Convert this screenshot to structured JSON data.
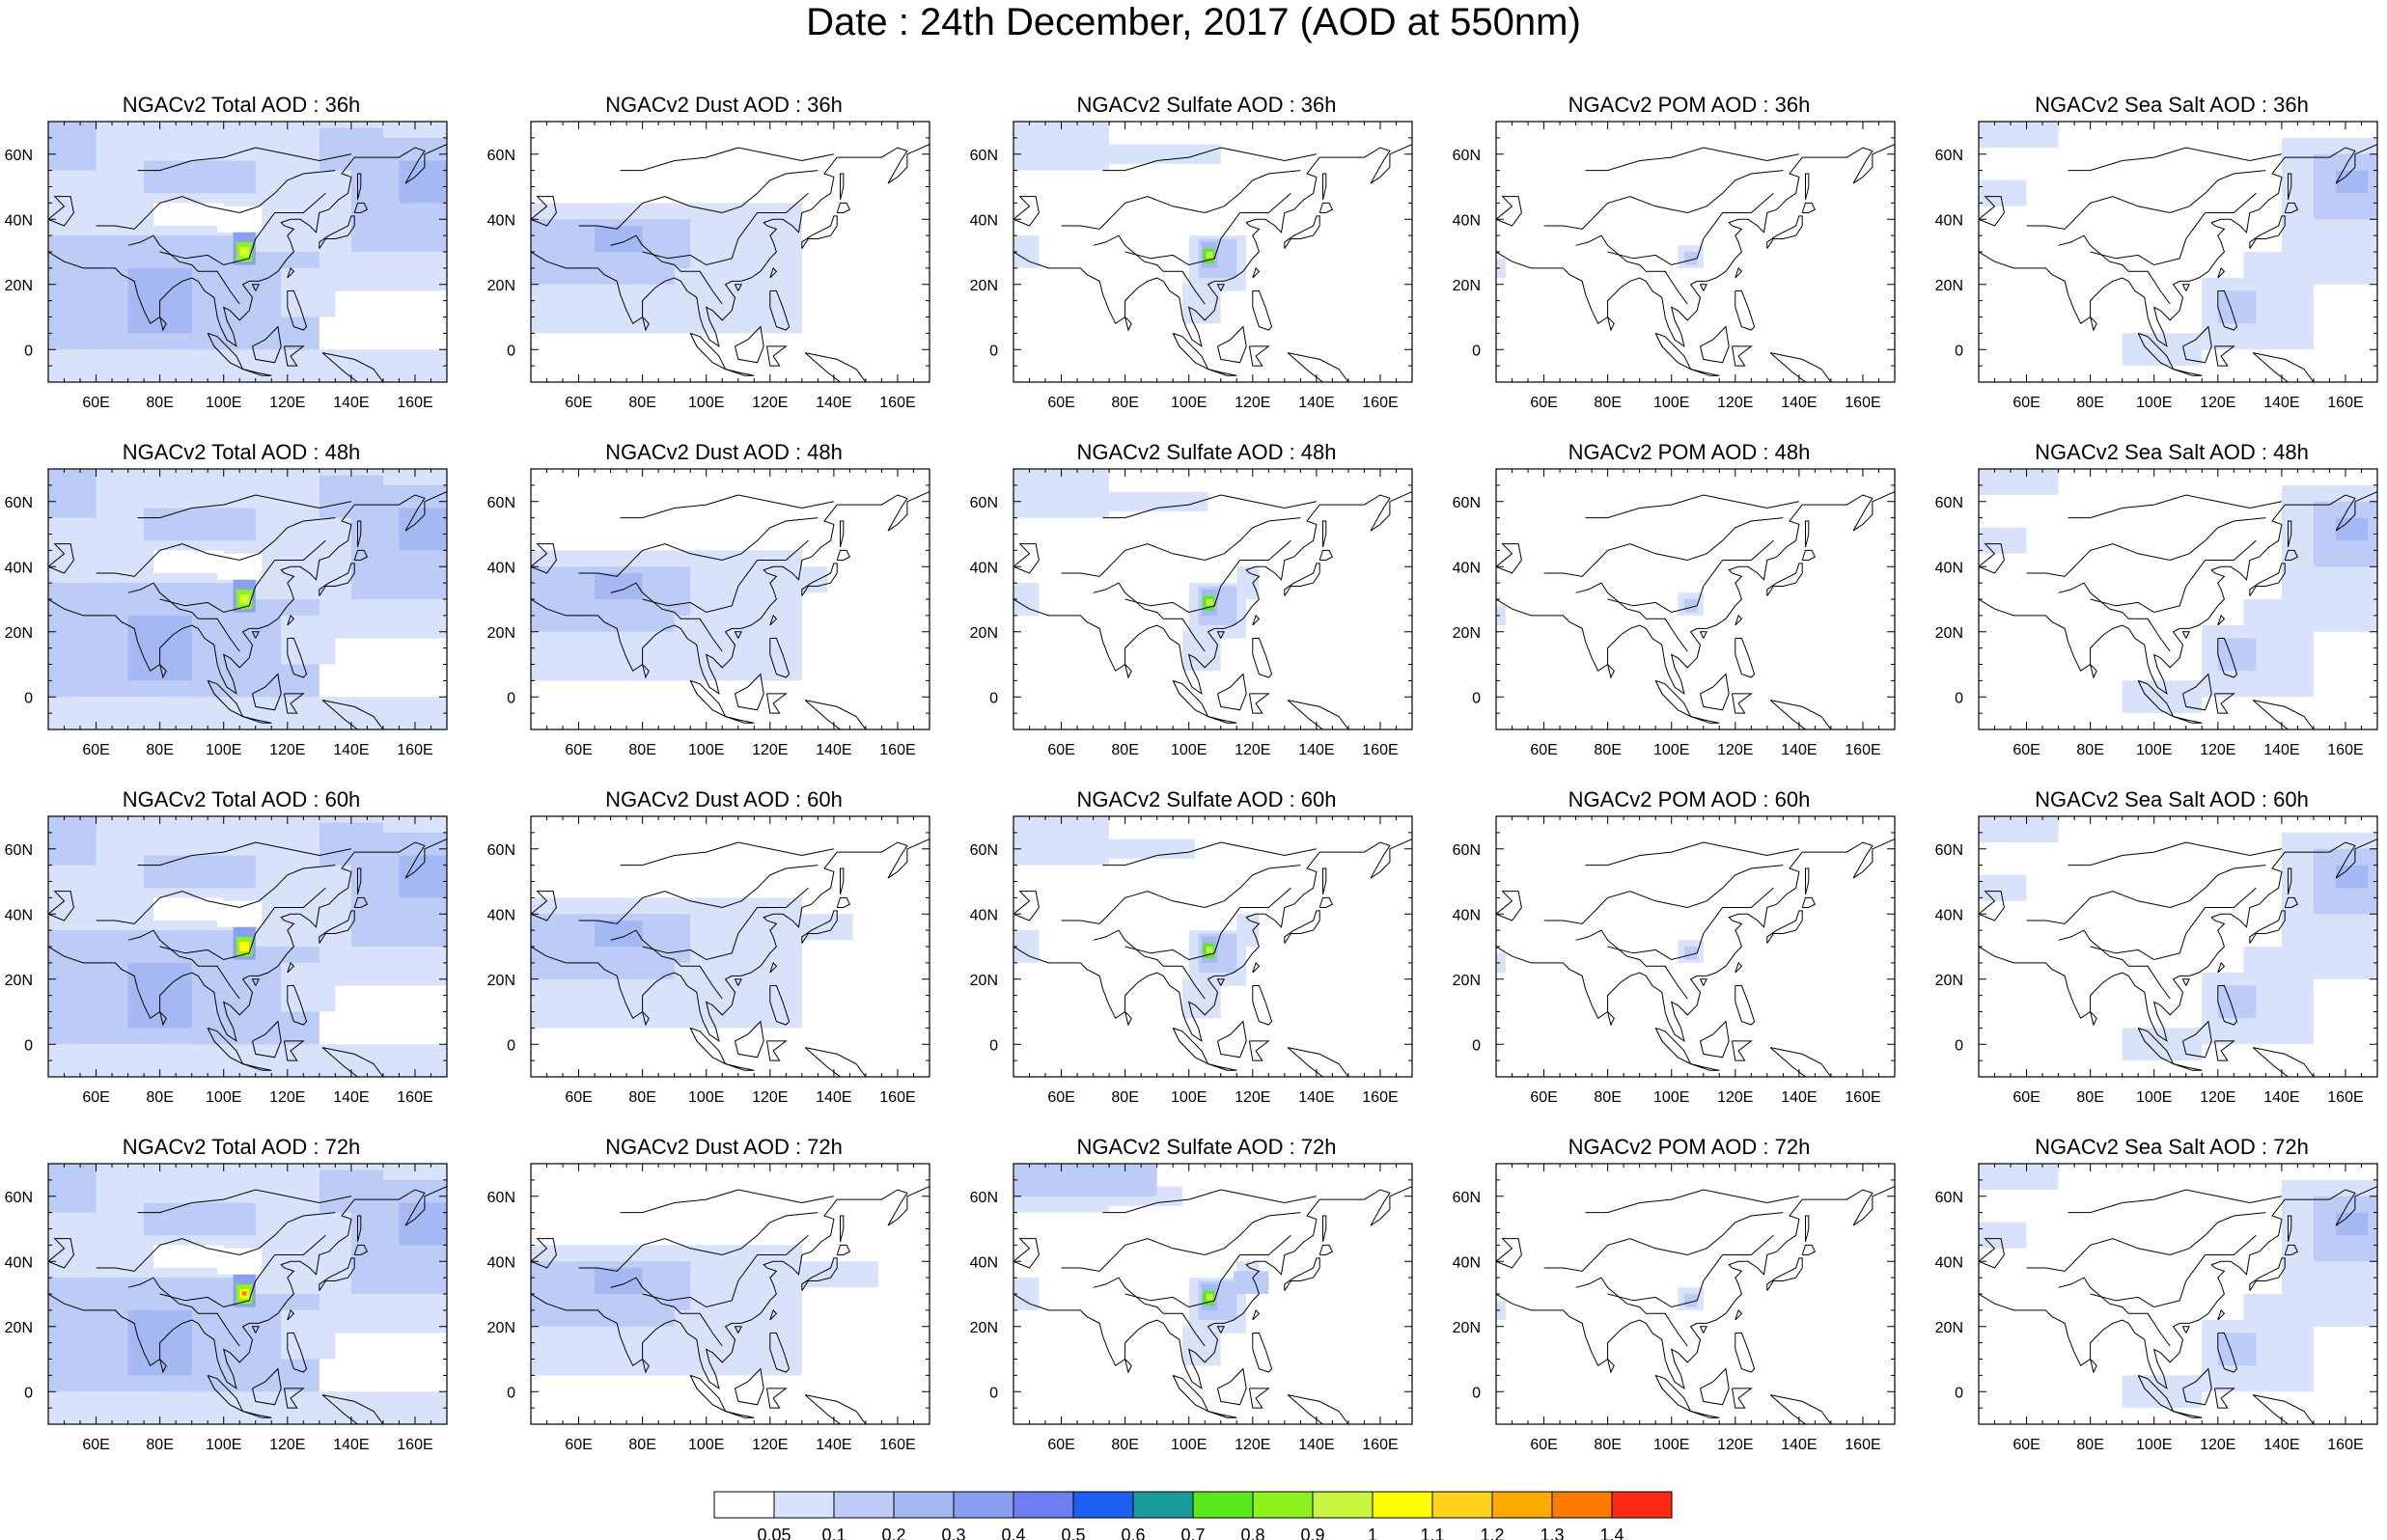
{
  "title": "Date : 24th December, 2017 (AOD at 550nm)",
  "axes": {
    "lon_ticks": [
      "60E",
      "80E",
      "100E",
      "120E",
      "140E",
      "160E"
    ],
    "lat_ticks": [
      "60N",
      "40N",
      "20N",
      "0"
    ]
  },
  "rows": [
    [
      "NGACv2 Total AOD : 36h",
      "NGACv2 Dust AOD : 36h",
      "NGACv2 Sulfate AOD : 36h",
      "NGACv2 POM AOD : 36h",
      "NGACv2 Sea Salt AOD : 36h"
    ],
    [
      "NGACv2 Total AOD : 48h",
      "NGACv2 Dust AOD : 48h",
      "NGACv2 Sulfate AOD : 48h",
      "NGACv2 POM AOD : 48h",
      "NGACv2 Sea Salt AOD : 48h"
    ],
    [
      "NGACv2 Total AOD : 60h",
      "NGACv2 Dust AOD : 60h",
      "NGACv2 Sulfate AOD : 60h",
      "NGACv2 POM AOD : 60h",
      "NGACv2 Sea Salt AOD : 60h"
    ],
    [
      "NGACv2 Total AOD : 72h",
      "NGACv2 Dust AOD : 72h",
      "NGACv2 Sulfate AOD : 72h",
      "NGACv2 POM AOD : 72h",
      "NGACv2 Sea Salt  AOD : 72h"
    ]
  ],
  "colorbar": {
    "labels": [
      "0.05",
      "0.1",
      "0.2",
      "0.3",
      "0.4",
      "0.5",
      "0.6",
      "0.7",
      "0.8",
      "0.9",
      "1",
      "1.1",
      "1.2",
      "1.3",
      "1.4"
    ],
    "colors": [
      "#ffffff",
      "#d8e2fb",
      "#bcccf7",
      "#a4b8f3",
      "#8a9ff0",
      "#6c7ef0",
      "#1e5ef5",
      "#1a9a9a",
      "#5ae81e",
      "#8ef21c",
      "#c8f53e",
      "#ffff00",
      "#ffd21a",
      "#ffaa00",
      "#ff7a00",
      "#ff2a14"
    ]
  }
}
